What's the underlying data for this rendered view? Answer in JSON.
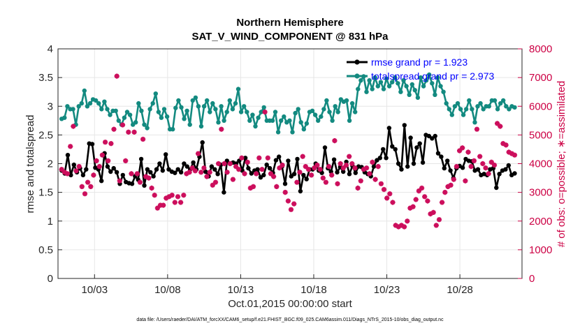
{
  "chart_data": {
    "type": "line",
    "title": "Northern Hemisphere",
    "subtitle": "SAT_V_WIND_COMPONENT @ 831 hPa",
    "xlabel": "Oct.01,2015 00:00:00 start",
    "ylabel": "rmse and totalspread",
    "y2label": "# of obs: o=possible; ∗=assimilated",
    "footnote": "data file: /Users/raeder/DAI/ATM_forcXX/CAM6_setup/f.e21.FHIST_BGC.f09_025.CAM6assim.011/Diags_NTrS_2015-10/obs_diag_output.nc",
    "xlim": [
      0.5,
      32.25
    ],
    "ylim": [
      0,
      4
    ],
    "y2lim": [
      0,
      8000
    ],
    "xticks": [
      {
        "value": 3,
        "label": "10/03"
      },
      {
        "value": 8,
        "label": "10/08"
      },
      {
        "value": 13,
        "label": "10/13"
      },
      {
        "value": 18,
        "label": "10/18"
      },
      {
        "value": 23,
        "label": "10/23"
      },
      {
        "value": 28,
        "label": "10/28"
      }
    ],
    "yticks": [
      "0",
      "0.5",
      "1",
      "1.5",
      "2",
      "2.5",
      "3",
      "3.5",
      "4"
    ],
    "y2ticks": [
      "0",
      "1000",
      "2000",
      "3000",
      "4000",
      "5000",
      "6000",
      "7000",
      "8000"
    ],
    "colors": {
      "rmse": "#000000",
      "spread": "#138a80",
      "obs": "#cc0e5c",
      "grid": "#e6e6e6",
      "legend_text": "#0000ff"
    },
    "series": [
      {
        "name": "rmse grand pr = 1.923",
        "values": [
          1.88,
          1.83,
          2.15,
          1.8,
          1.98,
          1.85,
          1.92,
          1.8,
          1.9,
          2.35,
          2.34,
          1.93,
          1.9,
          1.7,
          2.18,
          1.95,
          1.86,
          1.92,
          1.85,
          1.65,
          1.8,
          1.68,
          1.66,
          1.65,
          1.78,
          1.72,
          2.08,
          1.62,
          1.9,
          1.85,
          1.78,
          1.9,
          2.0,
          1.88,
          2.16,
          1.9,
          1.86,
          1.84,
          1.9,
          1.85,
          2.0,
          1.95,
          1.9,
          2.02,
          1.9,
          2.12,
          2.37,
          1.86,
          1.78,
          1.95,
          1.9,
          1.82,
          1.98,
          1.5,
          2.05,
          2.0,
          2.02,
          2.0,
          2.05,
          1.88,
          2.1,
          1.92,
          1.83,
          1.88,
          1.9,
          1.76,
          1.8,
          1.98,
          1.92,
          1.84,
          2.06,
          2.12,
          1.95,
          1.65,
          2.05,
          1.78,
          1.82,
          2.08,
          1.52,
          1.8,
          1.73,
          1.9,
          1.9,
          2.0,
          1.88,
          1.84,
          2.28,
          1.92,
          1.86,
          2.07,
          1.85,
          1.94,
          1.86,
          2.03,
          1.82,
          1.96,
          1.84,
          1.95,
          1.94,
          1.85,
          1.82,
          1.78,
          1.95,
          2.06,
          2.1,
          2.25,
          2.1,
          2.62,
          2.3,
          2.25,
          2.0,
          1.9,
          2.67,
          1.95,
          2.45,
          2.0,
          2.28,
          2.35,
          2.02,
          2.5,
          2.48,
          2.44,
          2.48,
          2.18,
          2.12,
          1.92,
          2.05,
          1.88,
          1.75,
          1.92,
          1.96,
          1.93,
          2.08,
          2.05,
          2.04,
          1.88,
          1.9,
          1.8,
          1.82,
          1.8,
          1.9,
          1.92,
          1.58,
          1.82,
          1.88,
          1.9,
          1.97,
          1.8,
          1.83
        ]
      },
      {
        "name": "totalspread grand pr = 2.973",
        "values": [
          2.78,
          2.8,
          3.0,
          2.95,
          2.95,
          2.68,
          3.0,
          3.05,
          3.27,
          3.0,
          3.05,
          3.12,
          3.1,
          3.05,
          2.95,
          3.08,
          2.95,
          2.85,
          2.92,
          2.92,
          2.75,
          2.68,
          2.8,
          2.9,
          2.85,
          2.68,
          2.72,
          3.05,
          2.92,
          2.68,
          2.62,
          2.95,
          3.05,
          3.22,
          2.9,
          2.8,
          2.95,
          2.82,
          2.6,
          2.6,
          2.97,
          3.1,
          2.98,
          2.78,
          2.92,
          2.68,
          3.1,
          3.15,
          3.0,
          2.65,
          3.0,
          3.1,
          2.9,
          3.05,
          2.95,
          2.72,
          3.0,
          2.75,
          2.9,
          3.1,
          2.95,
          3.05,
          3.3,
          2.9,
          3.0,
          2.9,
          2.75,
          2.85,
          2.65,
          2.8,
          2.9,
          2.98,
          2.75,
          2.75,
          2.75,
          2.9,
          2.55,
          2.75,
          2.82,
          2.72,
          2.75,
          2.55,
          2.88,
          2.95,
          2.72,
          2.6,
          2.7,
          2.9,
          2.92,
          2.85,
          2.75,
          2.82,
          2.95,
          3.1,
          2.9,
          2.75,
          3.0,
          2.9,
          3.12,
          3.08,
          3.1,
          2.75,
          3.05,
          2.9,
          3.3,
          3.45,
          3.52,
          3.25,
          3.45,
          3.3,
          3.5,
          3.35,
          3.42,
          3.3,
          3.48,
          3.35,
          3.42,
          3.5,
          3.4,
          3.25,
          3.45,
          3.35,
          3.2,
          3.38,
          3.28,
          3.15,
          3.5,
          3.35,
          3.45,
          3.55,
          3.4,
          3.2,
          3.5,
          3.35,
          3.25,
          3.05,
          2.95,
          2.85,
          3.0,
          3.05,
          2.95,
          2.85,
          2.95,
          3.1,
          2.95,
          2.72,
          3.0,
          3.05,
          2.95,
          3.0,
          3.0,
          3.1,
          3.1,
          2.95,
          3.05,
          3.1,
          3.0,
          2.95,
          3.0,
          2.98
        ]
      },
      {
        "name": "# of obs (assimilated)",
        "values": [
          3800,
          3700,
          3650,
          4600,
          5300,
          3750,
          3900,
          3200,
          2950,
          3350,
          3200,
          3600,
          4100,
          3900,
          4300,
          4750,
          4100,
          4700,
          5200,
          7050,
          3400,
          5350,
          4100,
          5100,
          3650,
          5100,
          3650,
          3350,
          4850,
          3550,
          3500,
          3150,
          2900,
          2450,
          2550,
          2550,
          2800,
          2850,
          2900,
          2650,
          2850,
          2650,
          2900,
          3650,
          3700,
          3850,
          3750,
          4350,
          3700,
          3850,
          3550,
          3700,
          3250,
          3350,
          4000,
          5200,
          4000,
          3700,
          4000,
          3450,
          3900,
          3800,
          4200,
          3650,
          4050,
          3150,
          3200,
          3650,
          4200,
          3800,
          5800,
          4200,
          3650,
          3550,
          3200,
          3850,
          3950,
          3000,
          2700,
          2400,
          2600,
          3350,
          3700,
          4250,
          3900,
          3800,
          3600,
          3850,
          3950,
          3800,
          3500,
          3350,
          3900,
          3600,
          4800,
          3300,
          4000,
          3850,
          3950,
          4250,
          4000,
          3850,
          3150,
          3400,
          3800,
          3850,
          3650,
          4050,
          3450,
          3900,
          3300,
          3100,
          2800,
          2950,
          2650,
          1850,
          1800,
          1850,
          1800,
          2000,
          2450,
          2500,
          2750,
          3050,
          3150,
          2850,
          2700,
          2250,
          2300,
          1850,
          2050,
          2650,
          3000,
          3200,
          3250,
          3450,
          3900,
          4450,
          4550,
          3400,
          4400,
          3900,
          4100,
          5200,
          4250,
          4000,
          3850,
          3650,
          4050,
          3950,
          5400,
          5300,
          4700,
          4650,
          4400,
          4350,
          4300
        ]
      }
    ],
    "legend_location": "top-right"
  }
}
